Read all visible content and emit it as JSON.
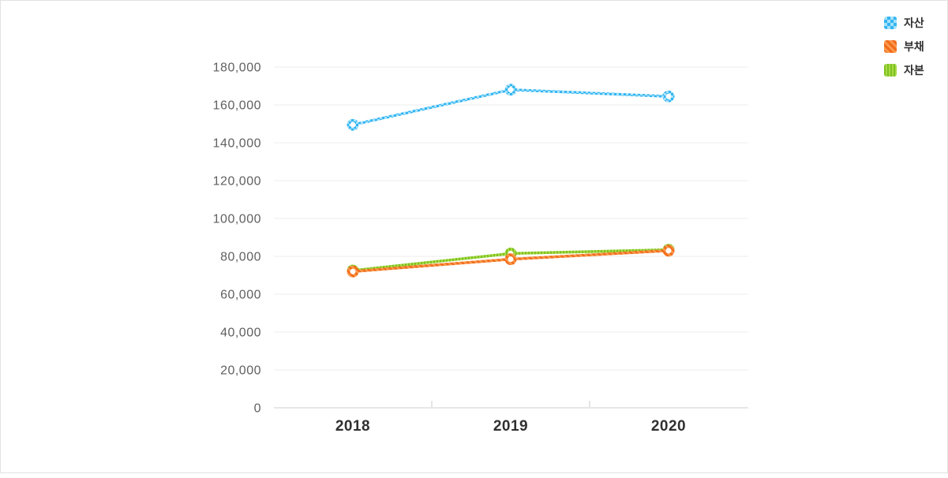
{
  "chart_data": {
    "type": "line",
    "title": "",
    "xlabel": "",
    "ylabel": "",
    "categories": [
      "2018",
      "2019",
      "2020"
    ],
    "series": [
      {
        "id": "assets",
        "name": "자산",
        "pattern": "checker",
        "color": "#33b5f2",
        "color_light": "#a5e1fa",
        "values": [
          149500,
          168000,
          164500
        ]
      },
      {
        "id": "liabilities",
        "name": "부채",
        "pattern": "diagonal",
        "color": "#f26c1c",
        "color_light": "#fa9a4d",
        "values": [
          72000,
          78500,
          83000
        ]
      },
      {
        "id": "equity",
        "name": "자본",
        "pattern": "vertical",
        "color": "#7dc122",
        "color_light": "#a8da44",
        "values": [
          72500,
          81500,
          83500
        ]
      }
    ],
    "draw_order": [
      0,
      2,
      1
    ],
    "ylim": [
      0,
      180000
    ],
    "yticks": [
      0,
      20000,
      40000,
      60000,
      80000,
      100000,
      120000,
      140000,
      160000,
      180000
    ],
    "ytick_labels": [
      "0",
      "20,000",
      "40,000",
      "60,000",
      "80,000",
      "100,000",
      "120,000",
      "140,000",
      "160,000",
      "180,000"
    ],
    "grid": true,
    "legend_position": "top-right",
    "colors": {
      "gridline": "#ededed",
      "baseline": "#e7e7e7",
      "axis_tick": "#dcdcdc",
      "ytick_text": "#606060",
      "xtick_text": "#303030",
      "marker_fill": "#ffffff"
    }
  }
}
